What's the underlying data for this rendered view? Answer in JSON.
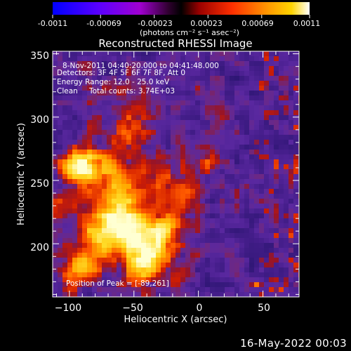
{
  "colorbar": {
    "ticks": [
      "-0.0011",
      "-0.00069",
      "-0.00023",
      "0.00023",
      "0.00069",
      "0.0011"
    ],
    "tick_values": [
      -0.0011,
      -0.00069,
      -0.00023,
      0.00023,
      0.00069,
      0.0011
    ],
    "range": [
      -0.0011,
      0.0011
    ],
    "units_label": "(photons cm⁻² s⁻¹ asec⁻²)",
    "colors": [
      "#0000ff",
      "#6b00ff",
      "#9b00c8",
      "#000000",
      "#c00000",
      "#ff4000",
      "#ff9a00",
      "#ffd400",
      "#ffffff"
    ]
  },
  "plot": {
    "title": "Reconstructed RHESSI Image",
    "xlabel": "Heliocentric X (arcsec)",
    "ylabel": "Heliocentric Y (arcsec)",
    "x_range": [
      -113,
      78
    ],
    "y_range": [
      158,
      352
    ],
    "x_ticks": [
      -100,
      -50,
      0,
      50
    ],
    "y_ticks": [
      200,
      250,
      300,
      350
    ],
    "x_tick_labels": [
      "−100",
      "−50",
      "0",
      "50"
    ],
    "y_tick_labels": [
      "200",
      "250",
      "300",
      "350"
    ]
  },
  "annotations": {
    "time_range": "8-Nov-2011 04:40:20.000 to 04:41:48.000",
    "detectors": "Detectors: 3F 4F 5F 6F 7F 8F, Att 0",
    "energy": "Energy Range: 12.0 - 25.0 keV",
    "clean_label": "Clean",
    "total_counts": "Total counts: 3.74E+03",
    "peak": "Position of Peak = [-89,261]"
  },
  "footer": {
    "timestamp": "16-May-2022 00:03"
  }
}
